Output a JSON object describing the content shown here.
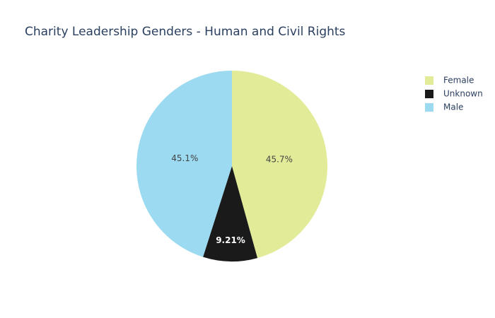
{
  "chart_data": {
    "type": "pie",
    "title": "Charity Leadership Genders - Human and Civil Rights",
    "categories": [
      "Female",
      "Unknown",
      "Male"
    ],
    "values": [
      45.7,
      9.21,
      45.1
    ],
    "value_labels": [
      "45.7%",
      "9.21%",
      "45.1%"
    ],
    "colors": [
      "#e2ec98",
      "#1a1a1a",
      "#9bdaf0"
    ],
    "legend": "top-right"
  }
}
